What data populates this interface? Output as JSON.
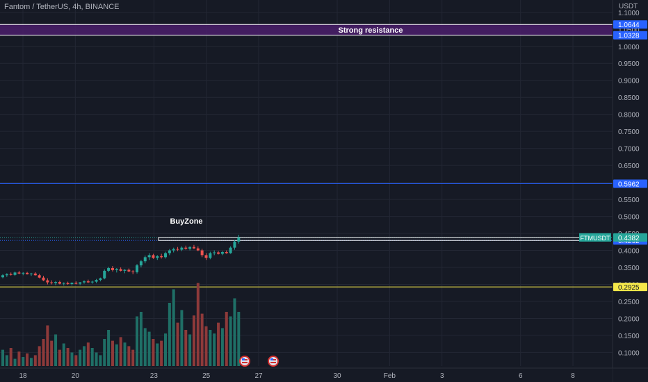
{
  "header": {
    "symbol_title": "Fantom / TetherUS, 4h, BINANCE",
    "axis_unit": "USDT"
  },
  "colors": {
    "background": "#161a25",
    "grid": "#232734",
    "axis_text": "#b2b5be",
    "candle_up": "#26a69a",
    "candle_down": "#ef5350",
    "volume_up": "#1f6f66",
    "volume_down": "#8e3a3a",
    "resistance_zone": "#4a1f6b",
    "blue_line": "#2962ff",
    "yellow_line": "#f5e84a"
  },
  "chart_data": {
    "type": "candlestick",
    "y_axis": {
      "min": 0.06,
      "max": 1.12,
      "ticks": [
        "1.1000",
        "1.0500",
        "1.0000",
        "0.9500",
        "0.9000",
        "0.8500",
        "0.8000",
        "0.7500",
        "0.7000",
        "0.6500",
        "0.6000",
        "0.5500",
        "0.5000",
        "0.4500",
        "0.4000",
        "0.3500",
        "0.3000",
        "0.2500",
        "0.2000",
        "0.1500",
        "0.1000"
      ]
    },
    "x_axis": {
      "ticks": [
        {
          "label": "18",
          "day": 18
        },
        {
          "label": "20",
          "day": 20
        },
        {
          "label": "23",
          "day": 23
        },
        {
          "label": "25",
          "day": 25
        },
        {
          "label": "27",
          "day": 27
        },
        {
          "label": "30",
          "day": 30
        },
        {
          "label": "Feb",
          "day": 32
        },
        {
          "label": "3",
          "day": 34
        },
        {
          "label": "6",
          "day": 37
        },
        {
          "label": "8",
          "day": 39
        }
      ]
    },
    "candles": [
      [
        0.321,
        0.33,
        0.318,
        0.327
      ],
      [
        0.327,
        0.333,
        0.322,
        0.33
      ],
      [
        0.33,
        0.335,
        0.326,
        0.328
      ],
      [
        0.328,
        0.338,
        0.325,
        0.335
      ],
      [
        0.335,
        0.34,
        0.33,
        0.332
      ],
      [
        0.332,
        0.336,
        0.327,
        0.334
      ],
      [
        0.334,
        0.337,
        0.329,
        0.33
      ],
      [
        0.33,
        0.334,
        0.325,
        0.332
      ],
      [
        0.332,
        0.336,
        0.326,
        0.327
      ],
      [
        0.327,
        0.331,
        0.318,
        0.32
      ],
      [
        0.32,
        0.325,
        0.31,
        0.312
      ],
      [
        0.312,
        0.318,
        0.3,
        0.306
      ],
      [
        0.306,
        0.312,
        0.3,
        0.304
      ],
      [
        0.304,
        0.31,
        0.298,
        0.307
      ],
      [
        0.307,
        0.311,
        0.3,
        0.302
      ],
      [
        0.302,
        0.306,
        0.297,
        0.304
      ],
      [
        0.304,
        0.308,
        0.299,
        0.301
      ],
      [
        0.301,
        0.306,
        0.297,
        0.305
      ],
      [
        0.305,
        0.309,
        0.3,
        0.302
      ],
      [
        0.302,
        0.307,
        0.298,
        0.306
      ],
      [
        0.306,
        0.312,
        0.302,
        0.309
      ],
      [
        0.309,
        0.314,
        0.304,
        0.306
      ],
      [
        0.306,
        0.311,
        0.302,
        0.308
      ],
      [
        0.308,
        0.316,
        0.304,
        0.313
      ],
      [
        0.313,
        0.32,
        0.309,
        0.318
      ],
      [
        0.318,
        0.344,
        0.315,
        0.34
      ],
      [
        0.34,
        0.352,
        0.336,
        0.348
      ],
      [
        0.348,
        0.354,
        0.338,
        0.342
      ],
      [
        0.342,
        0.348,
        0.335,
        0.345
      ],
      [
        0.345,
        0.35,
        0.338,
        0.34
      ],
      [
        0.34,
        0.345,
        0.333,
        0.343
      ],
      [
        0.343,
        0.347,
        0.336,
        0.338
      ],
      [
        0.338,
        0.342,
        0.33,
        0.336
      ],
      [
        0.336,
        0.36,
        0.332,
        0.356
      ],
      [
        0.356,
        0.372,
        0.35,
        0.368
      ],
      [
        0.368,
        0.385,
        0.362,
        0.38
      ],
      [
        0.38,
        0.392,
        0.372,
        0.386
      ],
      [
        0.386,
        0.39,
        0.375,
        0.378
      ],
      [
        0.378,
        0.386,
        0.372,
        0.383
      ],
      [
        0.383,
        0.39,
        0.376,
        0.38
      ],
      [
        0.38,
        0.396,
        0.376,
        0.392
      ],
      [
        0.392,
        0.404,
        0.386,
        0.4
      ],
      [
        0.4,
        0.408,
        0.394,
        0.404
      ],
      [
        0.404,
        0.41,
        0.398,
        0.402
      ],
      [
        0.402,
        0.412,
        0.398,
        0.408
      ],
      [
        0.408,
        0.414,
        0.402,
        0.405
      ],
      [
        0.405,
        0.412,
        0.4,
        0.41
      ],
      [
        0.41,
        0.416,
        0.404,
        0.406
      ],
      [
        0.406,
        0.412,
        0.398,
        0.4
      ],
      [
        0.4,
        0.405,
        0.38,
        0.386
      ],
      [
        0.386,
        0.392,
        0.372,
        0.378
      ],
      [
        0.378,
        0.396,
        0.374,
        0.392
      ],
      [
        0.392,
        0.4,
        0.386,
        0.394
      ],
      [
        0.394,
        0.398,
        0.388,
        0.39
      ],
      [
        0.39,
        0.398,
        0.386,
        0.395
      ],
      [
        0.395,
        0.4,
        0.39,
        0.392
      ],
      [
        0.392,
        0.412,
        0.39,
        0.408
      ],
      [
        0.408,
        0.43,
        0.402,
        0.426
      ],
      [
        0.426,
        0.446,
        0.42,
        0.438
      ]
    ],
    "volumes": [
      0.18,
      0.12,
      0.2,
      0.08,
      0.16,
      0.1,
      0.14,
      0.09,
      0.12,
      0.22,
      0.3,
      0.45,
      0.28,
      0.35,
      0.18,
      0.25,
      0.2,
      0.15,
      0.12,
      0.18,
      0.22,
      0.26,
      0.2,
      0.15,
      0.12,
      0.3,
      0.4,
      0.28,
      0.24,
      0.32,
      0.26,
      0.22,
      0.18,
      0.55,
      0.6,
      0.42,
      0.38,
      0.3,
      0.25,
      0.28,
      0.36,
      0.7,
      0.85,
      0.48,
      0.62,
      0.4,
      0.35,
      0.56,
      0.92,
      0.58,
      0.44,
      0.4,
      0.36,
      0.48,
      0.42,
      0.6,
      0.55,
      0.75,
      0.6
    ],
    "levels": [
      {
        "label": "1.0644",
        "value": 1.0644,
        "color": "#ffffff"
      },
      {
        "label": "1.0328",
        "value": 1.0328,
        "color": "#ffffff"
      },
      {
        "label": "0.5962",
        "value": 0.5962,
        "color": "#2962ff"
      },
      {
        "label": "0.4292",
        "value": 0.4292,
        "color": "#2962ff"
      },
      {
        "label": "0.2925",
        "value": 0.2925,
        "color": "#f5e84a"
      }
    ],
    "resistance_zone": {
      "label": "Strong resistance",
      "top": 1.0644,
      "bottom": 1.0328
    },
    "buy_zone": {
      "label": "BuyZone",
      "top": 0.4382,
      "bottom": 0.4292
    },
    "current_price": {
      "symbol": "FTMUSDT",
      "value_label": "0.4382",
      "value": 0.4382
    },
    "events_icons": [
      "us-flag-icon",
      "us-flag-icon"
    ]
  }
}
